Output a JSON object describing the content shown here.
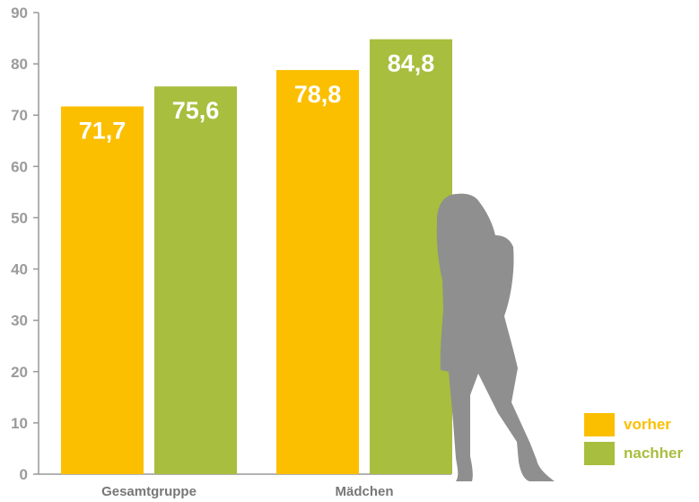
{
  "chart_data": {
    "type": "bar",
    "categories": [
      "Gesamtgruppe",
      "Mädchen"
    ],
    "series": [
      {
        "name": "vorher",
        "values": [
          71.7,
          78.8
        ],
        "labels": [
          "71,7",
          "78,8"
        ],
        "color": "#FBBF00"
      },
      {
        "name": "nachher",
        "values": [
          75.6,
          84.8
        ],
        "labels": [
          "75,6",
          "84,8"
        ],
        "color": "#A8BE3E"
      }
    ],
    "yticks": [
      "0",
      "10",
      "20",
      "30",
      "40",
      "50",
      "60",
      "70",
      "80",
      "90"
    ],
    "ylim": [
      0,
      90
    ],
    "grid": false,
    "legend_position": "bottom-right",
    "title": "",
    "xlabel": "",
    "ylabel": ""
  },
  "colors": {
    "axis": "#999999",
    "tick_text": "#9B9B9B",
    "category_text": "#777777",
    "silhouette": "#8F8F8F",
    "data_label": "#FFFFFF"
  },
  "legend": {
    "items": [
      {
        "label": "vorher",
        "color": "#FBBF00"
      },
      {
        "label": "nachher",
        "color": "#A8BE3E"
      }
    ]
  }
}
